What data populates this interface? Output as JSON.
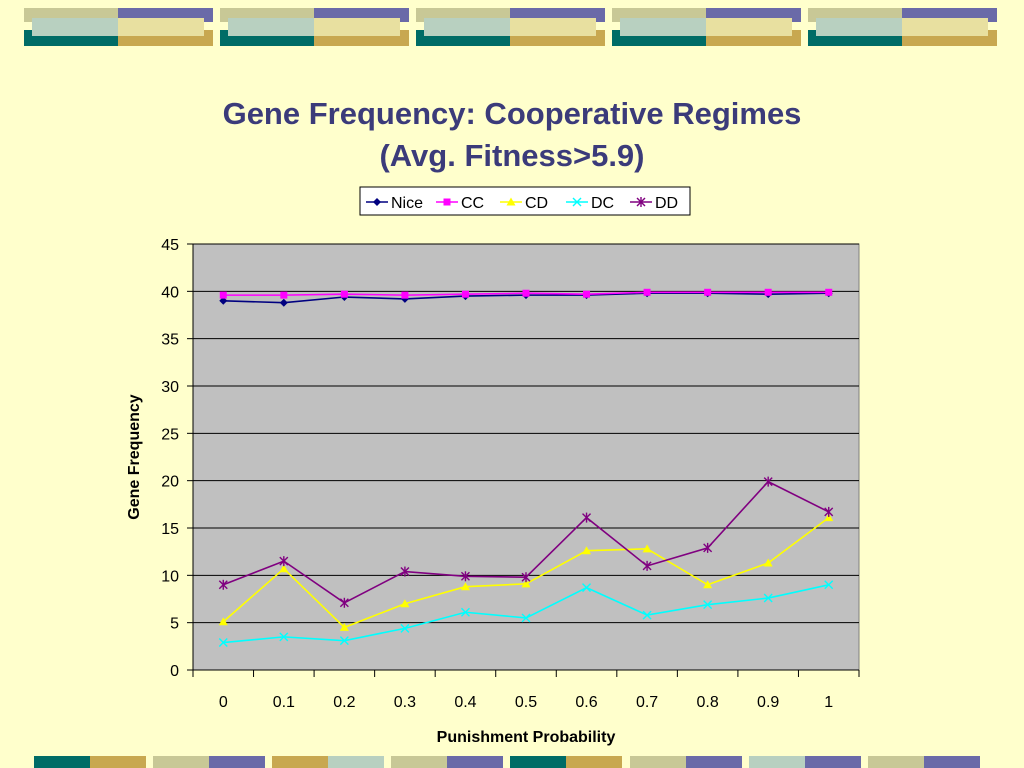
{
  "slide": {
    "title_line1": "Gene Frequency: Cooperative Regimes",
    "title_line2": "(Avg. Fitness>5.9)",
    "background": "#FFFFCC",
    "decor_colors": [
      "#C8C896",
      "#6A6AA8",
      "#006C66",
      "#C8A850",
      "#B8D0C0",
      "#E8E0A0"
    ]
  },
  "chart_data": {
    "type": "line",
    "xlabel": "Punishment Probability",
    "ylabel": "Gene Frequency",
    "categories": [
      "0",
      "0.1",
      "0.2",
      "0.3",
      "0.4",
      "0.5",
      "0.6",
      "0.7",
      "0.8",
      "0.9",
      "1"
    ],
    "ylim": [
      0,
      45
    ],
    "yticks": [
      0,
      5,
      10,
      15,
      20,
      25,
      30,
      35,
      40,
      45
    ],
    "grid": true,
    "plot_background": "#C0C0C0",
    "legend_position": "top-center",
    "series": [
      {
        "name": "Nice",
        "color": "#000080",
        "marker": "diamond",
        "values": [
          39.0,
          38.8,
          39.4,
          39.2,
          39.5,
          39.6,
          39.6,
          39.8,
          39.8,
          39.7,
          39.8
        ]
      },
      {
        "name": "CC",
        "color": "#FF00FF",
        "marker": "square",
        "values": [
          39.6,
          39.6,
          39.7,
          39.6,
          39.7,
          39.8,
          39.7,
          39.9,
          39.9,
          39.9,
          39.9
        ]
      },
      {
        "name": "CD",
        "color": "#FFFF00",
        "marker": "triangle",
        "values": [
          5.1,
          10.7,
          4.5,
          7.0,
          8.8,
          9.1,
          12.6,
          12.8,
          9.0,
          11.3,
          16.1
        ]
      },
      {
        "name": "DC",
        "color": "#00FFFF",
        "marker": "x",
        "values": [
          2.9,
          3.5,
          3.1,
          4.4,
          6.1,
          5.5,
          8.7,
          5.8,
          6.9,
          7.6,
          9.0
        ]
      },
      {
        "name": "DD",
        "color": "#800080",
        "marker": "star",
        "values": [
          9.0,
          11.5,
          7.1,
          10.4,
          9.9,
          9.8,
          16.1,
          11.0,
          12.9,
          19.9,
          16.7
        ]
      }
    ]
  }
}
